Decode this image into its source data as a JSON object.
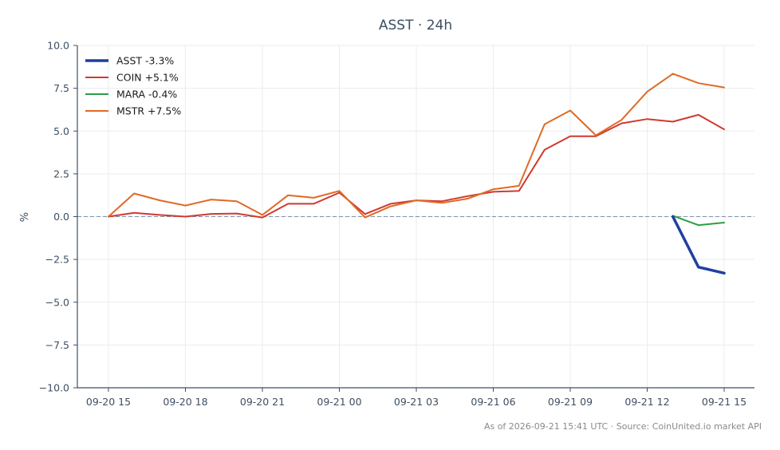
{
  "chart_data": {
    "type": "line",
    "title": "ASST · 24h",
    "xlabel": "",
    "ylabel": "%",
    "ylim": [
      -10.0,
      10.0
    ],
    "yticks": [
      "10.0",
      "7.5",
      "5.0",
      "2.5",
      "0.0",
      "−2.5",
      "−5.0",
      "−7.5",
      "−10.0"
    ],
    "ytick_values": [
      10.0,
      7.5,
      5.0,
      2.5,
      0.0,
      -2.5,
      -5.0,
      -7.5,
      -10.0
    ],
    "x_hours": [
      0,
      1,
      2,
      3,
      4,
      5,
      6,
      7,
      8,
      9,
      10,
      11,
      12,
      13,
      14,
      15,
      16,
      17,
      18,
      19,
      20,
      21,
      22,
      23,
      24
    ],
    "xticks": [
      "09-20 15",
      "09-20 18",
      "09-20 21",
      "09-21 00",
      "09-21 03",
      "09-21 06",
      "09-21 09",
      "09-21 12",
      "09-21 15"
    ],
    "xtick_hours": [
      0,
      3,
      6,
      9,
      12,
      15,
      18,
      21,
      24
    ],
    "grid": true,
    "legend_position": "top-left",
    "reference_line": 0.0,
    "series": [
      {
        "name": "ASST -3.3%",
        "color": "#1f3fa0",
        "x": [
          22,
          23,
          24
        ],
        "values": [
          0.0,
          -2.95,
          -3.3
        ]
      },
      {
        "name": "COIN +5.1%",
        "color": "#d03a2f",
        "x": [
          0,
          1,
          2,
          3,
          4,
          5,
          6,
          7,
          8,
          9,
          10,
          11,
          12,
          13,
          14,
          15,
          16,
          17,
          18,
          19,
          20,
          21,
          22,
          23,
          24
        ],
        "values": [
          0.0,
          0.22,
          0.1,
          0.0,
          0.16,
          0.18,
          -0.05,
          0.75,
          0.75,
          1.4,
          0.15,
          0.75,
          0.95,
          0.9,
          1.2,
          1.45,
          1.5,
          3.9,
          4.7,
          4.7,
          5.45,
          5.7,
          5.55,
          5.95,
          5.1
        ]
      },
      {
        "name": "MARA -0.4%",
        "color": "#2a9d45",
        "x": [
          22,
          23,
          24
        ],
        "values": [
          0.05,
          -0.5,
          -0.35
        ]
      },
      {
        "name": "MSTR +7.5%",
        "color": "#e06a25",
        "x": [
          0,
          1,
          2,
          3,
          4,
          5,
          6,
          7,
          8,
          9,
          10,
          11,
          12,
          13,
          14,
          15,
          16,
          17,
          18,
          19,
          20,
          21,
          22,
          23,
          24
        ],
        "values": [
          0.0,
          1.35,
          0.95,
          0.65,
          1.0,
          0.9,
          0.1,
          1.25,
          1.1,
          1.5,
          -0.05,
          0.6,
          0.95,
          0.8,
          1.05,
          1.6,
          1.8,
          5.4,
          6.2,
          4.75,
          5.65,
          7.3,
          8.35,
          7.8,
          7.55
        ]
      }
    ]
  },
  "footer": "As of 2026-09-21 15:41 UTC · Source: CoinUnited.io market API"
}
